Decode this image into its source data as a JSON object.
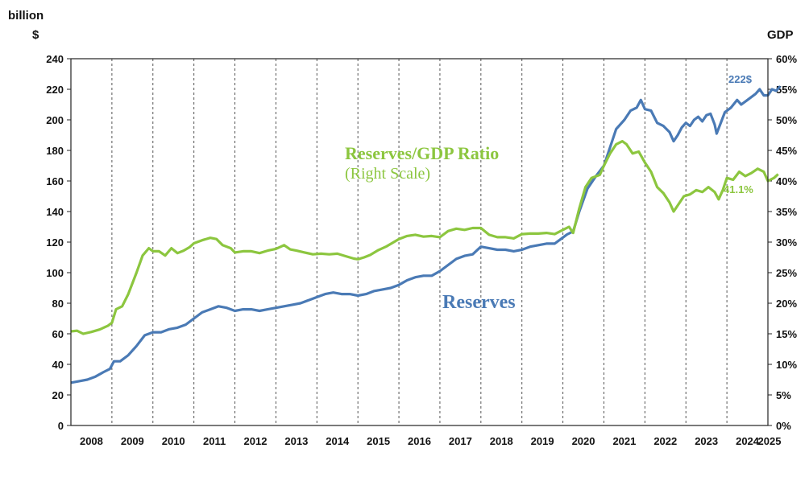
{
  "chart_data": {
    "type": "line",
    "left_axis_unit_line1": "billion",
    "left_axis_unit_line2": "$",
    "right_axis_unit": "GDP",
    "left_axis": {
      "min": 0,
      "max": 240,
      "step": 20,
      "ticks": [
        "0",
        "20",
        "40",
        "60",
        "80",
        "100",
        "120",
        "140",
        "160",
        "180",
        "200",
        "220",
        "240"
      ]
    },
    "right_axis": {
      "min": 0,
      "max": 60,
      "step": 5,
      "ticks": [
        "0%",
        "5%",
        "10%",
        "15%",
        "20%",
        "25%",
        "30%",
        "35%",
        "40%",
        "45%",
        "50%",
        "55%",
        "60%"
      ]
    },
    "x_axis": {
      "start": 2008.0,
      "end": 2025.0,
      "year_labels": [
        "2008",
        "2009",
        "2010",
        "2011",
        "2012",
        "2013",
        "2014",
        "2015",
        "2016",
        "2017",
        "2018",
        "2019",
        "2020",
        "2021",
        "2022",
        "2023",
        "2024",
        "2025"
      ]
    },
    "vertical_gridlines": "dashed, at each year boundary",
    "series": [
      {
        "name": "Reserves",
        "axis": "left",
        "color": "#4a7ab5",
        "label": "Reserves",
        "end_label": "222$",
        "points": [
          [
            2008.0,
            28
          ],
          [
            2008.2,
            29
          ],
          [
            2008.4,
            30
          ],
          [
            2008.6,
            32
          ],
          [
            2008.8,
            35
          ],
          [
            2008.95,
            37
          ],
          [
            2009.05,
            42
          ],
          [
            2009.2,
            42
          ],
          [
            2009.4,
            46
          ],
          [
            2009.6,
            52
          ],
          [
            2009.8,
            59
          ],
          [
            2010.0,
            61
          ],
          [
            2010.2,
            61
          ],
          [
            2010.4,
            63
          ],
          [
            2010.6,
            64
          ],
          [
            2010.8,
            66
          ],
          [
            2011.0,
            70
          ],
          [
            2011.2,
            74
          ],
          [
            2011.4,
            76
          ],
          [
            2011.6,
            78
          ],
          [
            2011.8,
            77
          ],
          [
            2012.0,
            75
          ],
          [
            2012.2,
            76
          ],
          [
            2012.4,
            76
          ],
          [
            2012.6,
            75
          ],
          [
            2012.8,
            76
          ],
          [
            2013.0,
            77
          ],
          [
            2013.2,
            78
          ],
          [
            2013.4,
            79
          ],
          [
            2013.6,
            80
          ],
          [
            2013.8,
            82
          ],
          [
            2014.0,
            84
          ],
          [
            2014.2,
            86
          ],
          [
            2014.4,
            87
          ],
          [
            2014.6,
            86
          ],
          [
            2014.8,
            86
          ],
          [
            2015.0,
            85
          ],
          [
            2015.2,
            86
          ],
          [
            2015.4,
            88
          ],
          [
            2015.6,
            89
          ],
          [
            2015.8,
            90
          ],
          [
            2016.0,
            92
          ],
          [
            2016.2,
            95
          ],
          [
            2016.4,
            97
          ],
          [
            2016.6,
            98
          ],
          [
            2016.8,
            98
          ],
          [
            2017.0,
            101
          ],
          [
            2017.2,
            105
          ],
          [
            2017.4,
            109
          ],
          [
            2017.6,
            111
          ],
          [
            2017.8,
            112
          ],
          [
            2018.0,
            117
          ],
          [
            2018.2,
            116
          ],
          [
            2018.4,
            115
          ],
          [
            2018.6,
            115
          ],
          [
            2018.8,
            114
          ],
          [
            2019.0,
            115
          ],
          [
            2019.2,
            117
          ],
          [
            2019.4,
            118
          ],
          [
            2019.6,
            119
          ],
          [
            2019.8,
            119
          ],
          [
            2020.0,
            123
          ],
          [
            2020.1,
            125
          ],
          [
            2020.25,
            127
          ],
          [
            2020.4,
            140
          ],
          [
            2020.6,
            155
          ],
          [
            2020.8,
            163
          ],
          [
            2021.0,
            170
          ],
          [
            2021.15,
            182
          ],
          [
            2021.3,
            194
          ],
          [
            2021.5,
            200
          ],
          [
            2021.65,
            206
          ],
          [
            2021.8,
            208
          ],
          [
            2021.9,
            213
          ],
          [
            2022.0,
            207
          ],
          [
            2022.15,
            206
          ],
          [
            2022.3,
            198
          ],
          [
            2022.45,
            196
          ],
          [
            2022.6,
            192
          ],
          [
            2022.7,
            186
          ],
          [
            2022.8,
            190
          ],
          [
            2022.9,
            195
          ],
          [
            2023.0,
            198
          ],
          [
            2023.1,
            196
          ],
          [
            2023.2,
            200
          ],
          [
            2023.3,
            202
          ],
          [
            2023.4,
            199
          ],
          [
            2023.5,
            203
          ],
          [
            2023.6,
            204
          ],
          [
            2023.7,
            197
          ],
          [
            2023.75,
            191
          ],
          [
            2023.85,
            198
          ],
          [
            2023.95,
            205
          ],
          [
            2024.1,
            208
          ],
          [
            2024.25,
            213
          ],
          [
            2024.35,
            210
          ],
          [
            2024.5,
            213
          ],
          [
            2024.7,
            217
          ],
          [
            2024.8,
            220
          ],
          [
            2024.9,
            216
          ],
          [
            2025.0,
            216
          ],
          [
            2025.1,
            220
          ],
          [
            2025.2,
            219
          ],
          [
            2025.3,
            222
          ]
        ]
      },
      {
        "name": "Reserves/GDP Ratio",
        "axis": "right",
        "color": "#8cc63f",
        "label_line1": "Reserves/GDP Ratio",
        "label_line2": "(Right Scale)",
        "end_label": "41.1%",
        "points": [
          [
            2008.0,
            15.4
          ],
          [
            2008.15,
            15.5
          ],
          [
            2008.3,
            15.0
          ],
          [
            2008.5,
            15.3
          ],
          [
            2008.7,
            15.7
          ],
          [
            2008.9,
            16.3
          ],
          [
            2009.0,
            16.8
          ],
          [
            2009.1,
            19.0
          ],
          [
            2009.25,
            19.5
          ],
          [
            2009.4,
            21.5
          ],
          [
            2009.6,
            25.0
          ],
          [
            2009.75,
            27.8
          ],
          [
            2009.9,
            29.0
          ],
          [
            2010.0,
            28.5
          ],
          [
            2010.15,
            28.5
          ],
          [
            2010.3,
            27.8
          ],
          [
            2010.45,
            29.0
          ],
          [
            2010.6,
            28.2
          ],
          [
            2010.75,
            28.6
          ],
          [
            2010.9,
            29.2
          ],
          [
            2011.0,
            29.8
          ],
          [
            2011.2,
            30.3
          ],
          [
            2011.4,
            30.7
          ],
          [
            2011.55,
            30.5
          ],
          [
            2011.7,
            29.5
          ],
          [
            2011.9,
            29.0
          ],
          [
            2012.0,
            28.3
          ],
          [
            2012.2,
            28.5
          ],
          [
            2012.4,
            28.5
          ],
          [
            2012.6,
            28.2
          ],
          [
            2012.8,
            28.6
          ],
          [
            2013.0,
            28.9
          ],
          [
            2013.2,
            29.5
          ],
          [
            2013.35,
            28.8
          ],
          [
            2013.5,
            28.6
          ],
          [
            2013.7,
            28.3
          ],
          [
            2013.9,
            28.0
          ],
          [
            2014.1,
            28.1
          ],
          [
            2014.3,
            28.0
          ],
          [
            2014.5,
            28.1
          ],
          [
            2014.7,
            27.7
          ],
          [
            2014.9,
            27.3
          ],
          [
            2015.0,
            27.2
          ],
          [
            2015.15,
            27.5
          ],
          [
            2015.3,
            27.9
          ],
          [
            2015.5,
            28.7
          ],
          [
            2015.7,
            29.3
          ],
          [
            2015.9,
            30.1
          ],
          [
            2016.0,
            30.5
          ],
          [
            2016.2,
            31.0
          ],
          [
            2016.4,
            31.2
          ],
          [
            2016.6,
            30.9
          ],
          [
            2016.8,
            31.0
          ],
          [
            2017.0,
            30.8
          ],
          [
            2017.2,
            31.8
          ],
          [
            2017.4,
            32.2
          ],
          [
            2017.6,
            32.0
          ],
          [
            2017.8,
            32.3
          ],
          [
            2018.0,
            32.3
          ],
          [
            2018.2,
            31.2
          ],
          [
            2018.4,
            30.8
          ],
          [
            2018.6,
            30.8
          ],
          [
            2018.8,
            30.6
          ],
          [
            2019.0,
            31.3
          ],
          [
            2019.2,
            31.4
          ],
          [
            2019.4,
            31.4
          ],
          [
            2019.6,
            31.5
          ],
          [
            2019.8,
            31.3
          ],
          [
            2020.0,
            32.0
          ],
          [
            2020.15,
            32.5
          ],
          [
            2020.25,
            31.5
          ],
          [
            2020.4,
            35.5
          ],
          [
            2020.55,
            39.0
          ],
          [
            2020.7,
            40.5
          ],
          [
            2020.9,
            41.0
          ],
          [
            2021.0,
            42.5
          ],
          [
            2021.15,
            44.5
          ],
          [
            2021.3,
            46.0
          ],
          [
            2021.45,
            46.5
          ],
          [
            2021.55,
            46.0
          ],
          [
            2021.7,
            44.5
          ],
          [
            2021.85,
            44.8
          ],
          [
            2022.0,
            43.0
          ],
          [
            2022.15,
            41.5
          ],
          [
            2022.3,
            39.0
          ],
          [
            2022.45,
            38.0
          ],
          [
            2022.6,
            36.5
          ],
          [
            2022.7,
            35.0
          ],
          [
            2022.8,
            36.0
          ],
          [
            2022.95,
            37.5
          ],
          [
            2023.1,
            37.8
          ],
          [
            2023.25,
            38.5
          ],
          [
            2023.4,
            38.2
          ],
          [
            2023.55,
            39.0
          ],
          [
            2023.7,
            38.2
          ],
          [
            2023.8,
            37.0
          ],
          [
            2023.9,
            38.5
          ],
          [
            2024.0,
            40.5
          ],
          [
            2024.15,
            40.2
          ],
          [
            2024.3,
            41.5
          ],
          [
            2024.45,
            40.8
          ],
          [
            2024.6,
            41.3
          ],
          [
            2024.75,
            42.0
          ],
          [
            2024.9,
            41.5
          ],
          [
            2025.0,
            40.0
          ],
          [
            2025.15,
            40.5
          ],
          [
            2025.25,
            41.1
          ]
        ]
      }
    ]
  }
}
